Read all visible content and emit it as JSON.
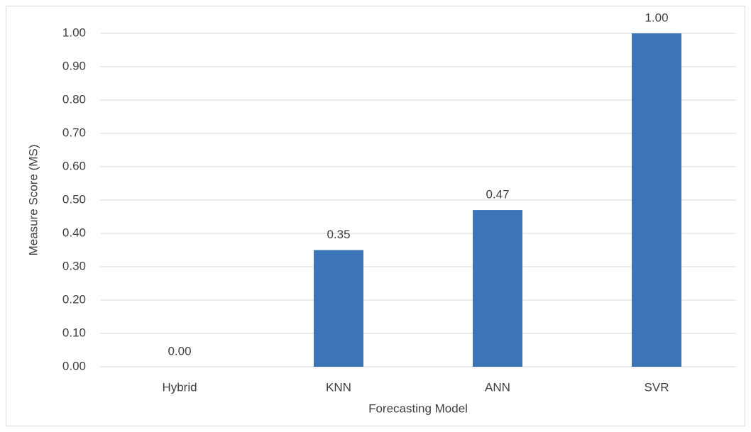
{
  "chart_data": {
    "type": "bar",
    "categories": [
      "Hybrid",
      "KNN",
      "ANN",
      "SVR"
    ],
    "values": [
      0,
      0.35,
      0.47,
      1.0
    ],
    "value_labels": [
      "0.00",
      "0.35",
      "0.47",
      "1.00"
    ],
    "color": "#3b74b7",
    "x_label": "Forecasting Model",
    "y_label": "Measure Score (MS)",
    "ylim": [
      0,
      1
    ],
    "yticks": [
      {
        "value": 0,
        "label": "0.00"
      },
      {
        "value": 0.1,
        "label": "0.10"
      },
      {
        "value": 0.2,
        "label": "0.20"
      },
      {
        "value": 0.3,
        "label": "0.30"
      },
      {
        "value": 0.4,
        "label": "0.40"
      },
      {
        "value": 0.5,
        "label": "0.50"
      },
      {
        "value": 0.6,
        "label": "0.60"
      },
      {
        "value": 0.7,
        "label": "0.70"
      },
      {
        "value": 0.8,
        "label": "0.80"
      },
      {
        "value": 0.9,
        "label": "0.90"
      },
      {
        "value": 1,
        "label": "1.00"
      }
    ],
    "grid": true
  }
}
